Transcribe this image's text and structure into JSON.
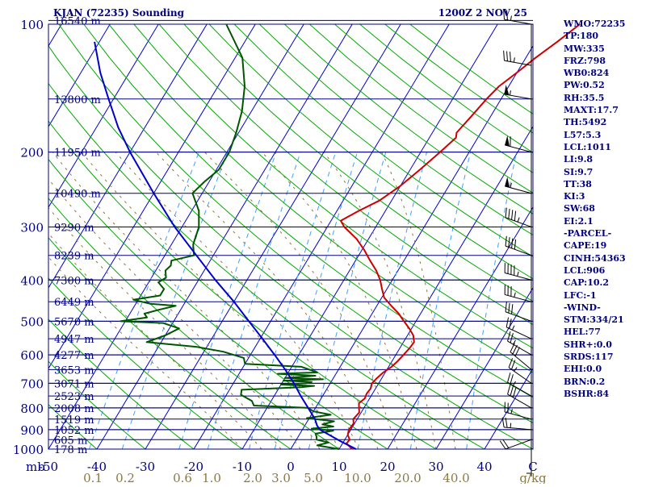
{
  "header": {
    "station": "KJAN (72235) Sounding",
    "time": "1200Z  2 NOV 25"
  },
  "indices": [
    "WMO:72235",
    "TP:180",
    "MW:335",
    "FRZ:798",
    "WB0:824",
    "PW:0.52",
    "RH:35.5",
    "MAXT:17.7",
    "TH:5492",
    "L57:5.3",
    "LCL:1011",
    "LI:9.8",
    "SI:9.7",
    "TT:38",
    "KI:3",
    "SW:68",
    "EI:2.1",
    "-PARCEL-",
    "CAPE:19",
    "CINH:54363",
    "LCL:906",
    "CAP:10.2",
    "LFC:-1",
    "-WIND-",
    "STM:334/21",
    "HEL:77",
    "SHR+:0.0",
    "SRDS:117",
    "EHI:0.0",
    "BRN:0.2",
    "BSHR:84"
  ],
  "colors": {
    "isobar": "#000080",
    "isotherm": "#0000cc",
    "dry_adiabat": "#00aa00",
    "mixing_ratio": "#40a0ff",
    "moist_adiabat": "#8c7840",
    "temperature": "#cc0000",
    "dewpoint": "#005500",
    "parcel": "#0000cc",
    "axis_text": "#000080",
    "mixing_text": "#8c7840"
  },
  "chart_data": {
    "type": "line",
    "chart_kind": "Skew-T log-P sounding",
    "y_axis": {
      "scale": "log",
      "range": [
        100,
        1000
      ],
      "labeled_pressures": [
        100,
        200,
        300,
        400,
        500,
        600,
        700,
        800,
        900,
        1000
      ],
      "label_text": [
        "100",
        "200",
        "300",
        "400",
        "500",
        "600",
        "700",
        "800",
        "900",
        "1000"
      ],
      "heights": [
        {
          "p": 98,
          "label": "16540 m"
        },
        {
          "p": 150,
          "label": "13800 m"
        },
        {
          "p": 200,
          "label": "11950 m"
        },
        {
          "p": 250,
          "label": "10490 m"
        },
        {
          "p": 300,
          "label": "9290 m"
        },
        {
          "p": 350,
          "label": "8239 m"
        },
        {
          "p": 400,
          "label": "7300 m"
        },
        {
          "p": 450,
          "label": "6449 m"
        },
        {
          "p": 500,
          "label": "5670 m"
        },
        {
          "p": 550,
          "label": "4947 m"
        },
        {
          "p": 600,
          "label": "4277 m"
        },
        {
          "p": 650,
          "label": "3653 m"
        },
        {
          "p": 700,
          "label": "3071 m"
        },
        {
          "p": 750,
          "label": "2523 m"
        },
        {
          "p": 800,
          "label": "2008 m"
        },
        {
          "p": 850,
          "label": "1519 m"
        },
        {
          "p": 900,
          "label": "1052 m"
        },
        {
          "p": 950,
          "label": "605 m"
        },
        {
          "p": 1000,
          "label": "178 m"
        }
      ]
    },
    "x_axis": {
      "unit_label": "mb",
      "temperature_ticks": [
        -50,
        -40,
        -30,
        -20,
        -10,
        0,
        10,
        20,
        30,
        40
      ],
      "tick_text": [
        "-50",
        "-40",
        "-30",
        "-20",
        "-10",
        "0",
        "10",
        "20",
        "30",
        "40"
      ],
      "end_label": "C",
      "range": [
        -50,
        50
      ]
    },
    "mixing_ratio_labels": {
      "unit": "g/kg",
      "values": [
        "0.1",
        "0.2",
        "0.6",
        "1.0",
        "2.0",
        "3.0",
        "5.0",
        "10.0",
        "20.0",
        "40.0"
      ]
    },
    "series": [
      {
        "key": "temperature",
        "points": [
          [
            1000,
            12.7
          ],
          [
            970,
            10.8
          ],
          [
            950,
            11.0
          ],
          [
            925,
            10.0
          ],
          [
            900,
            9.6
          ],
          [
            870,
            9.8
          ],
          [
            850,
            9.2
          ],
          [
            820,
            9.6
          ],
          [
            800,
            9.0
          ],
          [
            780,
            8.4
          ],
          [
            760,
            9.0
          ],
          [
            740,
            8.8
          ],
          [
            720,
            9.0
          ],
          [
            700,
            8.6
          ],
          [
            680,
            9.0
          ],
          [
            660,
            9.6
          ],
          [
            640,
            10.6
          ],
          [
            620,
            11.2
          ],
          [
            600,
            11.6
          ],
          [
            580,
            12.0
          ],
          [
            560,
            12.2
          ],
          [
            540,
            11.2
          ],
          [
            520,
            9.5
          ],
          [
            500,
            7.5
          ],
          [
            480,
            5.5
          ],
          [
            460,
            3.0
          ],
          [
            440,
            0.5
          ],
          [
            420,
            -1.0
          ],
          [
            400,
            -2.5
          ],
          [
            380,
            -4.5
          ],
          [
            360,
            -7
          ],
          [
            340,
            -9.5
          ],
          [
            320,
            -12.5
          ],
          [
            300,
            -16.5
          ],
          [
            290,
            -18
          ],
          [
            275,
            -15.5
          ],
          [
            260,
            -12.5
          ],
          [
            240,
            -10
          ],
          [
            220,
            -8
          ],
          [
            200,
            -6
          ],
          [
            185,
            -4.5
          ],
          [
            180,
            -5
          ],
          [
            165,
            -4
          ],
          [
            150,
            -3
          ],
          [
            140,
            -2
          ],
          [
            130,
            0
          ],
          [
            120,
            2
          ],
          [
            110,
            4.5
          ],
          [
            100,
            7
          ]
        ]
      },
      {
        "key": "dewpoint",
        "points": [
          [
            1000,
            10
          ],
          [
            980,
            5
          ],
          [
            965,
            7
          ],
          [
            950,
            4.2
          ],
          [
            935,
            3.8
          ],
          [
            920,
            3.2
          ],
          [
            905,
            6.5
          ],
          [
            895,
            1.8
          ],
          [
            885,
            6.0
          ],
          [
            875,
            3.5
          ],
          [
            860,
            5.5
          ],
          [
            845,
            -0.5
          ],
          [
            830,
            4
          ],
          [
            815,
            0
          ],
          [
            800,
            -1.5
          ],
          [
            790,
            -13
          ],
          [
            770,
            -14
          ],
          [
            745,
            -17
          ],
          [
            725,
            -17.5
          ],
          [
            715,
            -5.5
          ],
          [
            710,
            -3
          ],
          [
            705,
            -10
          ],
          [
            700,
            -5
          ],
          [
            695,
            -4
          ],
          [
            690,
            -10
          ],
          [
            685,
            -2
          ],
          [
            680,
            -10
          ],
          [
            672,
            -4
          ],
          [
            665,
            -12
          ],
          [
            660,
            -4
          ],
          [
            650,
            -6
          ],
          [
            640,
            -8
          ],
          [
            630,
            -20
          ],
          [
            610,
            -21
          ],
          [
            590,
            -26
          ],
          [
            575,
            -32
          ],
          [
            560,
            -43
          ],
          [
            540,
            -40
          ],
          [
            520,
            -38
          ],
          [
            505,
            -42
          ],
          [
            500,
            -51
          ],
          [
            490,
            -46
          ],
          [
            480,
            -47
          ],
          [
            470,
            -44.5
          ],
          [
            460,
            -41.5
          ],
          [
            455,
            -47
          ],
          [
            445,
            -51
          ],
          [
            435,
            -46
          ],
          [
            420,
            -46
          ],
          [
            405,
            -48
          ],
          [
            395,
            -47
          ],
          [
            380,
            -48
          ],
          [
            370,
            -47.5
          ],
          [
            360,
            -48
          ],
          [
            350,
            -44
          ],
          [
            330,
            -45.5
          ],
          [
            300,
            -46.5
          ],
          [
            275,
            -48.5
          ],
          [
            250,
            -52
          ],
          [
            235,
            -51
          ],
          [
            220,
            -49.5
          ],
          [
            200,
            -49.5
          ],
          [
            180,
            -50.5
          ],
          [
            160,
            -52
          ],
          [
            140,
            -54.5
          ],
          [
            120,
            -58.5
          ],
          [
            100,
            -66
          ]
        ]
      },
      {
        "key": "parcel",
        "points": [
          [
            1000,
            13.5
          ],
          [
            960,
            9.5
          ],
          [
            920,
            5.6
          ],
          [
            900,
            3.6
          ],
          [
            880,
            2.5
          ],
          [
            850,
            1.3
          ],
          [
            800,
            -1.5
          ],
          [
            750,
            -4.5
          ],
          [
            700,
            -7.5
          ],
          [
            650,
            -11
          ],
          [
            600,
            -15
          ],
          [
            550,
            -19.5
          ],
          [
            500,
            -24.5
          ],
          [
            450,
            -30
          ],
          [
            400,
            -36.5
          ],
          [
            350,
            -43.5
          ],
          [
            300,
            -51.5
          ],
          [
            250,
            -60
          ],
          [
            200,
            -70
          ],
          [
            175,
            -75.5
          ],
          [
            150,
            -81
          ],
          [
            130,
            -86
          ],
          [
            110,
            -91
          ]
        ]
      }
    ],
    "wind_barbs": [
      {
        "p": 1000,
        "dir": 180,
        "kt": 5
      },
      {
        "p": 950,
        "dir": 250,
        "kt": 20
      },
      {
        "p": 900,
        "dir": 275,
        "kt": 25
      },
      {
        "p": 850,
        "dir": 285,
        "kt": 25
      },
      {
        "p": 800,
        "dir": 300,
        "kt": 30
      },
      {
        "p": 750,
        "dir": 300,
        "kt": 25
      },
      {
        "p": 700,
        "dir": 305,
        "kt": 25
      },
      {
        "p": 650,
        "dir": 310,
        "kt": 30
      },
      {
        "p": 600,
        "dir": 300,
        "kt": 25
      },
      {
        "p": 550,
        "dir": 295,
        "kt": 25
      },
      {
        "p": 500,
        "dir": 290,
        "kt": 30
      },
      {
        "p": 450,
        "dir": 285,
        "kt": 35
      },
      {
        "p": 400,
        "dir": 285,
        "kt": 45
      },
      {
        "p": 350,
        "dir": 290,
        "kt": 40
      },
      {
        "p": 300,
        "dir": 290,
        "kt": 45
      },
      {
        "p": 250,
        "dir": 285,
        "kt": 55
      },
      {
        "p": 200,
        "dir": 285,
        "kt": 60
      },
      {
        "p": 150,
        "dir": 280,
        "kt": 55
      },
      {
        "p": 125,
        "dir": 280,
        "kt": 35
      },
      {
        "p": 100,
        "dir": 280,
        "kt": 25
      }
    ]
  }
}
